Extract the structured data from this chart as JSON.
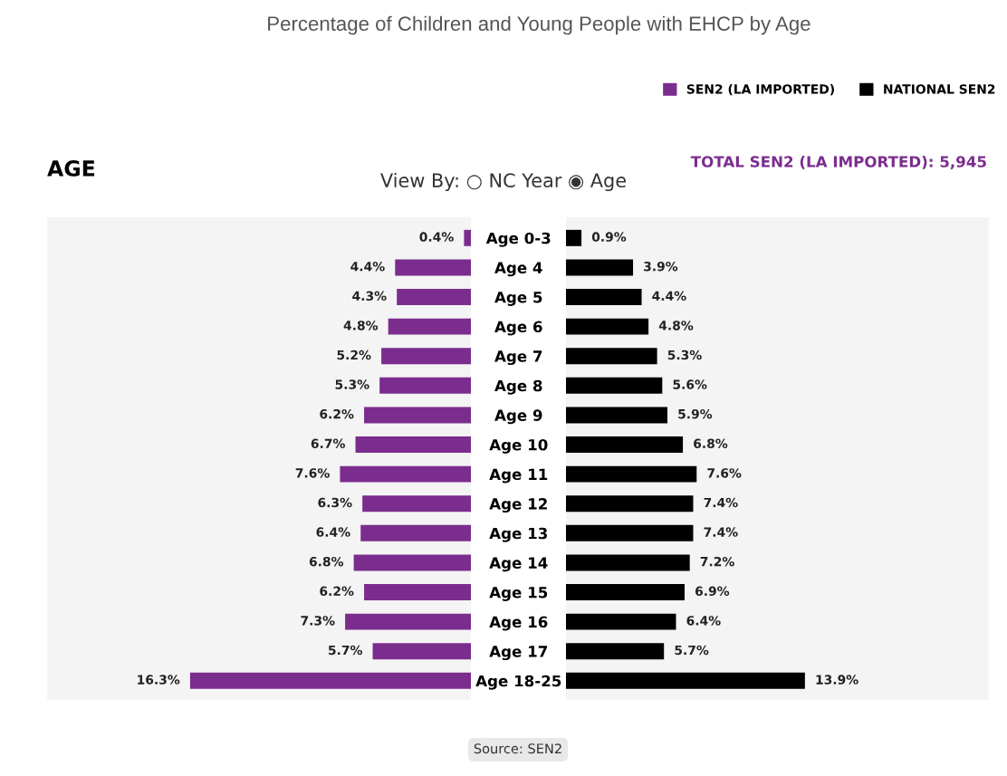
{
  "chart_data": [
    {
      "type": "bar",
      "orientation": "horizontal",
      "title": "Percentage of Children and Young People with EHCP by Age",
      "annotations": [
        "AGE",
        "View By: ○ NC Year ◉ Age",
        "TOTAL SEN2 (LA IMPORTED): 5,945",
        "Source: SEN2"
      ],
      "categories": [
        "Age 0-3",
        "Age 4",
        "Age 5",
        "Age 6",
        "Age 7",
        "Age 8",
        "Age 9",
        "Age 10",
        "Age 11",
        "Age 12",
        "Age 13",
        "Age 14",
        "Age 15",
        "Age 16",
        "Age 17",
        "Age 18-25"
      ],
      "series": [
        {
          "name": "SEN2 (LA IMPORTED)",
          "color": "#7b2d8e",
          "values": [
            0.4,
            4.4,
            4.3,
            4.8,
            5.2,
            5.3,
            6.2,
            6.7,
            7.6,
            6.3,
            6.4,
            6.8,
            6.2,
            7.3,
            5.7,
            16.3
          ],
          "value_labels": [
            "0.4%",
            "4.4%",
            "4.3%",
            "4.8%",
            "5.2%",
            "5.3%",
            "6.2%",
            "6.7%",
            "7.6%",
            "6.3%",
            "6.4%",
            "6.8%",
            "6.2%",
            "7.3%",
            "5.7%",
            "16.3%"
          ]
        }
      ],
      "xlim": [
        24.6,
        0
      ],
      "tick_labels": "y",
      "legend": "top right"
    },
    {
      "type": "bar",
      "orientation": "horizontal",
      "categories": [
        null,
        null,
        null,
        null,
        null,
        null,
        null,
        null,
        null,
        null,
        null,
        null,
        null,
        null,
        null,
        null
      ],
      "series": [
        {
          "name": "NATIONAL SEN2",
          "color": "#000000",
          "values": [
            0.9,
            3.9,
            4.4,
            4.8,
            5.3,
            5.6,
            5.9,
            6.8,
            7.6,
            7.4,
            7.4,
            7.2,
            6.9,
            6.4,
            5.7,
            13.9
          ],
          "value_labels": [
            "0.9%",
            "3.9%",
            "4.4%",
            "4.8%",
            "5.3%",
            "5.6%",
            "5.9%",
            "6.8%",
            "7.6%",
            "7.4%",
            "7.4%",
            "7.2%",
            "6.9%",
            "6.4%",
            "5.7%",
            "13.9%"
          ]
        }
      ],
      "xlim": [
        0,
        24.6
      ],
      "tick_labels": false,
      "legend": "top right"
    }
  ]
}
